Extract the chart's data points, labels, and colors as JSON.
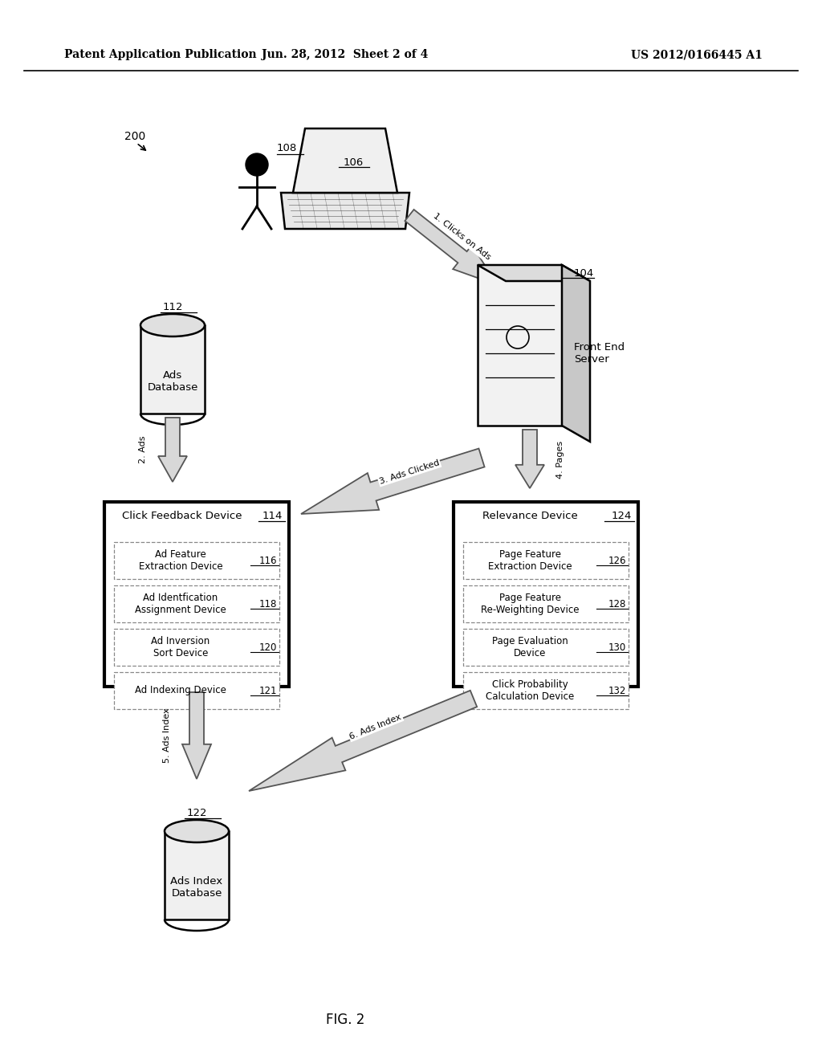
{
  "bg_color": "#ffffff",
  "header_left": "Patent Application Publication",
  "header_center": "Jun. 28, 2012  Sheet 2 of 4",
  "header_right": "US 2012/0166445 A1",
  "fig_label": "FIG. 2",
  "sub_boxes_left": [
    {
      "label": "116",
      "text": "Ad Feature\nExtraction Device"
    },
    {
      "label": "118",
      "text": "Ad Identfication\nAssignment Device"
    },
    {
      "label": "120",
      "text": "Ad Inversion\nSort Device"
    },
    {
      "label": "121",
      "text": "Ad Indexing Device"
    }
  ],
  "sub_boxes_right": [
    {
      "label": "126",
      "text": "Page Feature\nExtraction Device"
    },
    {
      "label": "128",
      "text": "Page Feature\nRe-Weighting Device"
    },
    {
      "label": "130",
      "text": "Page Evaluation\nDevice"
    },
    {
      "label": "132",
      "text": "Click Probability\nCalculation Device"
    }
  ]
}
